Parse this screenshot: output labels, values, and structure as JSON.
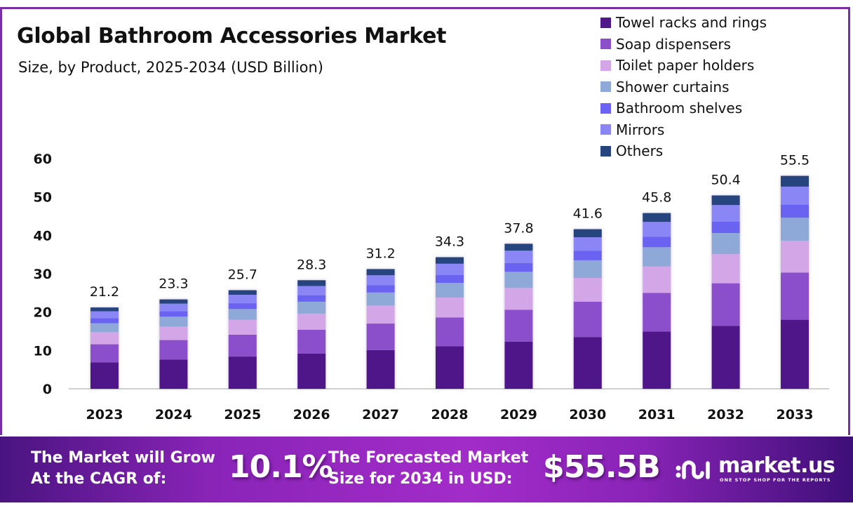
{
  "title": "Global Bathroom Accessories Market",
  "subtitle": "Size, by Product, 2025-2034 (USD Billion)",
  "colors": {
    "frame": "#7a2ea0",
    "towel": "#4f1789",
    "soap": "#8b4fcc",
    "toilet": "#d3a6e8",
    "shower": "#8ea8d8",
    "shelves": "#6b63f2",
    "mirrors": "#8a86f5",
    "others": "#26447e"
  },
  "chart_data": {
    "type": "bar",
    "stacked": true,
    "title": "Global Bathroom Accessories Market",
    "subtitle": "Size, by Product, 2025-2034 (USD Billion)",
    "xlabel": "",
    "ylabel": "",
    "ylim": [
      0,
      60
    ],
    "yticks": [
      "0",
      "10",
      "20",
      "30",
      "40",
      "50",
      "60"
    ],
    "grid": false,
    "legend_position": "top-right",
    "categories": [
      "2023",
      "2024",
      "2025",
      "2026",
      "2027",
      "2028",
      "2029",
      "2030",
      "2031",
      "2032",
      "2033"
    ],
    "totals": [
      "21.2",
      "23.3",
      "25.7",
      "28.3",
      "31.2",
      "34.3",
      "37.8",
      "41.6",
      "45.8",
      "50.4",
      "55.5"
    ],
    "series": [
      {
        "name": "Towel racks and rings",
        "color_key": "towel",
        "values": [
          6.9,
          7.6,
          8.4,
          9.2,
          10.1,
          11.1,
          12.3,
          13.5,
          14.9,
          16.4,
          18.0
        ]
      },
      {
        "name": "Soap dispensers",
        "color_key": "soap",
        "values": [
          4.7,
          5.1,
          5.7,
          6.2,
          6.9,
          7.5,
          8.3,
          9.2,
          10.1,
          11.1,
          12.3
        ]
      },
      {
        "name": "Toilet paper holders",
        "color_key": "toilet",
        "values": [
          3.2,
          3.5,
          3.9,
          4.2,
          4.7,
          5.2,
          5.7,
          6.2,
          6.9,
          7.6,
          8.3
        ]
      },
      {
        "name": "Shower curtains",
        "color_key": "shower",
        "values": [
          2.3,
          2.6,
          2.8,
          3.1,
          3.4,
          3.8,
          4.2,
          4.6,
          5.0,
          5.5,
          6.0
        ]
      },
      {
        "name": "Bathroom shelves",
        "color_key": "shelves",
        "values": [
          1.3,
          1.4,
          1.5,
          1.7,
          1.9,
          2.1,
          2.3,
          2.5,
          2.7,
          3.0,
          3.4
        ]
      },
      {
        "name": "Mirrors",
        "color_key": "mirrors",
        "values": [
          1.8,
          2.0,
          2.2,
          2.4,
          2.6,
          2.9,
          3.2,
          3.5,
          3.9,
          4.3,
          4.7
        ]
      },
      {
        "name": "Others",
        "color_key": "others",
        "values": [
          1.0,
          1.1,
          1.2,
          1.5,
          1.6,
          1.7,
          1.8,
          2.1,
          2.3,
          2.5,
          2.8
        ]
      }
    ]
  },
  "banner": {
    "cagr_line1": "The Market will Grow",
    "cagr_line2": "At the CAGR of:",
    "cagr_value": "10.1%",
    "forecast_line1": "The Forecasted Market",
    "forecast_line2": "Size for 2034 in USD:",
    "forecast_value": "$55.5B",
    "brand_name": "market.us",
    "brand_tagline": "ONE STOP SHOP FOR THE REPORTS"
  }
}
